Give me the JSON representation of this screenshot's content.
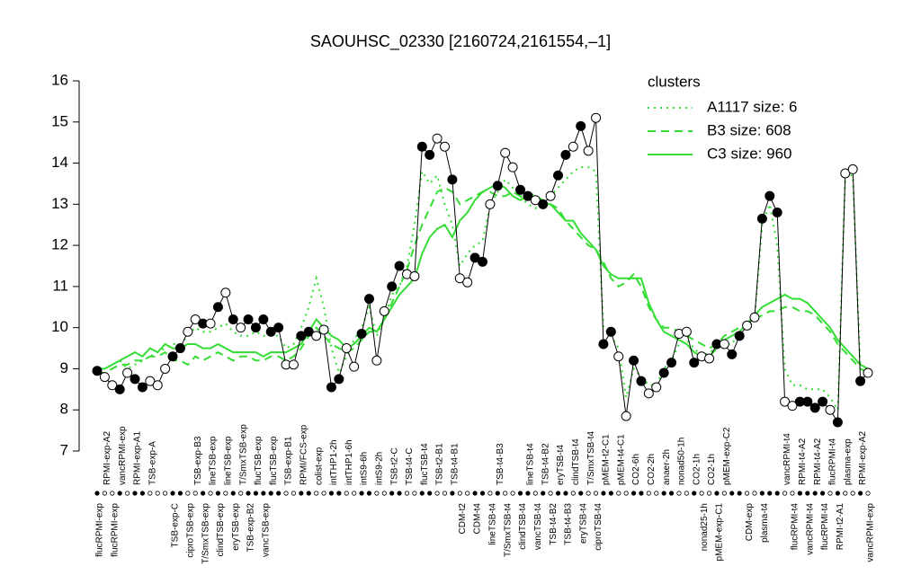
{
  "chart_data": {
    "type": "line",
    "title": "SAOUHSC_02330 [2160724,2161554,–1]",
    "ylim": [
      7,
      16
    ],
    "yticks": [
      7,
      8,
      9,
      10,
      11,
      12,
      13,
      14,
      15,
      16
    ],
    "legend_title": "clusters",
    "legend_position": "top-right",
    "categories": [
      "flucRPMI-exp",
      "RPMI-exp-A2",
      "flucRPMI-exp",
      "vancRPMI-exp",
      null,
      "RPMI-exp-A1",
      null,
      "TSB-exp-A",
      null,
      null,
      "TSB-exp-C",
      null,
      "ciproTSB-exp",
      "TSB-exp-B3",
      "T/SmxTSB-exp",
      "lineTSB-exp",
      "clindTSB-exp",
      "lineTSB-exp",
      "eryTSB-exp",
      "T/SmxTSB-exp",
      "TSB-exp-B2",
      "flucTSB-exp",
      "vancTSB-exp",
      "flucTSB-exp",
      null,
      "TSB-exp-B1",
      null,
      "RPMI/FCS-exp",
      null,
      "colist-exp",
      null,
      "intTHP1-2h",
      null,
      "intTHP1-6h",
      null,
      "intS9-6h",
      null,
      "intS9-2h",
      null,
      "TSB-t2-C",
      null,
      "TSB-t4-C",
      null,
      "flucTSB-t4",
      null,
      "TSB-t2-B1",
      null,
      "TSB-t4-B1",
      "CDM-t2",
      null,
      "CDM-t4",
      null,
      "lineTSB-t4",
      "TSB-t4-B3",
      "T/SmxTSB-t4",
      null,
      "clindTSB-t4",
      "lineTSB-t4",
      "vancTSB-t4",
      "TSB-t4-B2",
      "TSB-t4-B2",
      "eryTSB-t4",
      "TSB-t4-B3",
      "clindTSB-t4",
      "eryTSB-t4",
      "T/SmxTSB-t4",
      "ciproTSB-t4",
      "pMEM-t2-C1",
      null,
      "pMEM-t4-C1",
      null,
      "CO2-6h",
      null,
      "CO2-2h",
      null,
      "anaer-2h",
      null,
      "nonad50-1h",
      null,
      "CO2-1h",
      "nonad25-1h",
      "CO2-1h",
      "pMEM-exp-C1",
      "pMEM-exp-C2",
      null,
      null,
      "CDM-exp",
      null,
      "plasma-t4",
      null,
      null,
      "vancRPMI-t4",
      "flucRPMI-t4",
      "RPMI-t4-A2",
      "vancRPMI-t4",
      "RPMI-t4-A2",
      "flucRPMI-t4",
      "flucRPMI-t4",
      "RPMI-t2-A1",
      "plasma-exp",
      null,
      "RPMI-exp-A2",
      "vancRPMI-exp"
    ],
    "values": [
      8.95,
      8.8,
      8.6,
      8.5,
      8.9,
      8.75,
      8.55,
      8.7,
      8.6,
      9.0,
      9.3,
      9.5,
      9.9,
      10.2,
      10.1,
      10.1,
      10.5,
      10.85,
      10.2,
      10.0,
      10.2,
      10.0,
      10.2,
      9.9,
      10.0,
      9.1,
      9.1,
      9.8,
      9.9,
      9.8,
      9.95,
      8.55,
      8.75,
      9.5,
      9.05,
      9.85,
      10.7,
      9.2,
      10.4,
      11.0,
      11.5,
      11.3,
      11.25,
      14.4,
      14.2,
      14.6,
      14.4,
      13.6,
      11.2,
      11.1,
      11.7,
      11.6,
      13.0,
      13.45,
      14.25,
      13.9,
      13.35,
      13.2,
      13.1,
      13.0,
      13.2,
      13.7,
      14.2,
      14.4,
      14.9,
      14.3,
      15.1,
      9.6,
      9.9,
      9.3,
      7.85,
      9.2,
      8.7,
      8.4,
      8.55,
      8.9,
      9.15,
      9.85,
      9.9,
      9.15,
      9.3,
      9.25,
      9.6,
      9.6,
      9.35,
      9.8,
      10.05,
      10.25,
      12.65,
      13.2,
      12.8,
      8.2,
      8.1,
      8.2,
      8.2,
      8.05,
      8.2,
      8.0,
      7.7,
      13.75,
      13.85,
      8.7,
      8.9
    ],
    "filled": [
      true,
      false,
      false,
      true,
      false,
      true,
      true,
      false,
      false,
      false,
      true,
      true,
      false,
      false,
      true,
      false,
      true,
      false,
      true,
      false,
      true,
      true,
      true,
      true,
      true,
      false,
      false,
      true,
      true,
      false,
      false,
      true,
      true,
      false,
      false,
      true,
      true,
      false,
      false,
      true,
      true,
      false,
      false,
      true,
      true,
      false,
      false,
      true,
      false,
      false,
      true,
      true,
      false,
      true,
      false,
      false,
      true,
      true,
      false,
      true,
      false,
      true,
      true,
      false,
      true,
      false,
      false,
      true,
      true,
      false,
      false,
      true,
      true,
      false,
      false,
      true,
      true,
      false,
      false,
      true,
      false,
      false,
      true,
      false,
      true,
      true,
      false,
      false,
      true,
      true,
      true,
      false,
      false,
      true,
      true,
      true,
      true,
      false,
      true,
      false,
      false,
      true,
      false
    ],
    "line_color": "#000000",
    "series": [
      {
        "name": "A1117 size: 6",
        "color": "#33dd33",
        "dash": "dotted",
        "values": [
          9.0,
          9.0,
          9.1,
          9.2,
          9.0,
          9.1,
          9.2,
          9.3,
          9.4,
          9.5,
          9.6,
          9.6,
          9.8,
          10.0,
          9.9,
          9.9,
          10.0,
          10.1,
          9.9,
          9.8,
          9.8,
          9.9,
          9.8,
          9.8,
          9.8,
          9.5,
          9.6,
          10.0,
          10.5,
          11.2,
          10.5,
          9.5,
          8.9,
          9.3,
          9.7,
          10.0,
          10.5,
          9.8,
          10.2,
          10.8,
          11.0,
          11.5,
          12.5,
          13.8,
          13.5,
          13.7,
          13.0,
          12.5,
          11.5,
          11.8,
          12.0,
          12.1,
          13.0,
          13.3,
          13.6,
          13.4,
          13.2,
          13.0,
          12.9,
          13.0,
          13.2,
          13.4,
          13.6,
          13.8,
          13.9,
          13.9,
          13.8,
          10.0,
          9.8,
          9.5,
          8.3,
          9.0,
          8.8,
          8.6,
          8.6,
          9.0,
          9.2,
          9.6,
          9.7,
          9.5,
          9.3,
          9.4,
          9.5,
          9.6,
          9.6,
          9.9,
          10.0,
          10.2,
          12.5,
          13.0,
          12.0,
          9.0,
          8.6,
          8.6,
          8.5,
          8.5,
          8.5,
          8.3,
          8.0,
          13.7,
          13.7,
          9.0,
          8.9
        ]
      },
      {
        "name": "B3 size: 608",
        "color": "#33dd33",
        "dash": "dashed",
        "values": [
          8.9,
          8.9,
          9.0,
          9.1,
          9.1,
          9.2,
          9.2,
          9.3,
          9.3,
          9.4,
          9.2,
          9.2,
          9.1,
          9.3,
          9.2,
          9.3,
          9.4,
          9.3,
          9.2,
          9.3,
          9.3,
          9.2,
          9.2,
          9.3,
          9.3,
          9.2,
          9.3,
          9.5,
          9.8,
          10.0,
          9.8,
          9.6,
          9.5,
          9.4,
          9.5,
          9.7,
          9.9,
          9.9,
          10.2,
          10.6,
          11.0,
          11.4,
          12.0,
          12.5,
          12.9,
          13.3,
          13.4,
          13.3,
          13.0,
          13.1,
          13.2,
          13.3,
          13.3,
          13.2,
          13.2,
          13.3,
          13.2,
          13.3,
          13.2,
          13.1,
          13.0,
          12.9,
          12.6,
          12.4,
          12.2,
          12.0,
          11.9,
          11.6,
          11.2,
          11.0,
          11.1,
          11.3,
          11.0,
          10.5,
          10.2,
          10.0,
          10.0,
          9.9,
          9.8,
          9.7,
          9.6,
          9.5,
          9.6,
          9.8,
          9.9,
          10.0,
          10.1,
          10.2,
          10.3,
          10.4,
          10.4,
          10.5,
          10.5,
          10.4,
          10.4,
          10.3,
          10.1,
          9.9,
          9.6,
          9.4,
          9.2,
          9.0,
          8.9
        ]
      },
      {
        "name": "C3 size: 960",
        "color": "#33dd33",
        "dash": "solid",
        "values": [
          9.0,
          9.0,
          9.1,
          9.2,
          9.3,
          9.4,
          9.3,
          9.5,
          9.4,
          9.6,
          9.5,
          9.5,
          9.6,
          9.6,
          9.5,
          9.5,
          9.6,
          9.5,
          9.4,
          9.4,
          9.4,
          9.4,
          9.3,
          9.4,
          9.4,
          9.4,
          9.5,
          9.6,
          9.9,
          10.2,
          10.0,
          9.8,
          9.7,
          9.5,
          9.6,
          9.8,
          10.0,
          9.9,
          10.2,
          10.5,
          10.8,
          11.0,
          11.2,
          11.8,
          12.2,
          12.4,
          12.5,
          12.2,
          12.6,
          12.8,
          13.1,
          13.3,
          13.4,
          13.5,
          13.4,
          13.2,
          13.1,
          13.2,
          13.1,
          13.0,
          13.0,
          12.8,
          12.6,
          12.6,
          12.3,
          12.1,
          11.9,
          11.5,
          11.3,
          11.2,
          11.2,
          11.2,
          11.2,
          10.6,
          10.2,
          9.9,
          9.8,
          9.7,
          9.6,
          9.4,
          9.3,
          9.3,
          9.5,
          9.7,
          9.8,
          9.9,
          10.1,
          10.3,
          10.5,
          10.6,
          10.7,
          10.8,
          10.7,
          10.7,
          10.6,
          10.4,
          10.2,
          10.0,
          9.7,
          9.5,
          9.3,
          9.1,
          9.0
        ]
      }
    ]
  }
}
